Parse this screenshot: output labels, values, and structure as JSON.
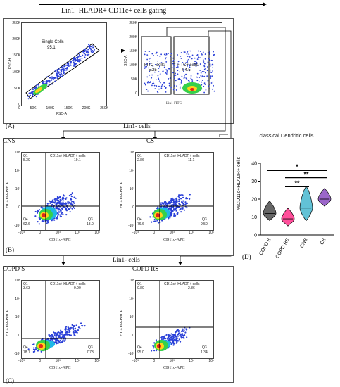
{
  "title": "Lin1- HLADR+ CD11c+ cells gating",
  "panel_a": {
    "label": "(A)",
    "plot1": {
      "gate_name": "Single Cells",
      "gate_value": "95.1",
      "x_label": "FSC-A",
      "y_label": "FSC-H",
      "x_ticks": [
        "0",
        "50K",
        "100K",
        "150K",
        "200K",
        "250K"
      ],
      "y_ticks": [
        "0",
        "50K",
        "100K",
        "150K",
        "200K",
        "250K"
      ]
    },
    "plot2": {
      "gate_neg_name": "FITC- cells",
      "gate_neg_value": "5.25",
      "gate_pos_name": "FITC+ cells",
      "gate_pos_value": "94.5",
      "x_label": "Lin1-FITC",
      "y_label": "SSC-A",
      "y_ticks": [
        "0",
        "50K",
        "100K",
        "150K",
        "200K",
        "250K"
      ]
    }
  },
  "section_lin1_top": "Lin1- cells",
  "section_lin1_bottom": "Lin1- cells",
  "panel_b": {
    "label": "(B)",
    "plots": [
      {
        "name": "CNS",
        "q1": "5.39",
        "q2": "19.1",
        "q3": "13.0",
        "q4": "62.6"
      },
      {
        "name": "CS",
        "q1": "2.86",
        "q2": "11.1",
        "q3": "9.50",
        "q4": "76.6"
      }
    ]
  },
  "panel_c": {
    "label": "(C)",
    "plots": [
      {
        "name": "COPD S",
        "q1": "3.63",
        "q2": "9.90",
        "q3": "7.73",
        "q4": "78.7"
      },
      {
        "name": "COPD RS",
        "q1": "0.80",
        "q2": "2.86",
        "q3": "1.34",
        "q4": "95.0"
      }
    ]
  },
  "quadrant_labels": {
    "q1": "Q1",
    "q2": "CD11c+ HLADR+ cells",
    "q3": "Q3",
    "q4": "Q4"
  },
  "flow_axes": {
    "x_label": "CD11c-APC",
    "y_label": "HLADR-PerCP",
    "y_ticks": [
      "10⁵",
      "10⁴",
      "10³",
      "0",
      "-10³"
    ],
    "x_ticks": [
      "-10³",
      "0",
      "10³",
      "10⁴",
      "10⁵"
    ]
  },
  "panel_d": {
    "label": "(D)",
    "chart_data": {
      "type": "violin",
      "title": "classical Dendritic cells",
      "ylabel": "%CD11c+HLADR+ cells",
      "ylim": [
        0,
        40
      ],
      "yticks": [
        "0",
        "10",
        "20",
        "30",
        "40"
      ],
      "categories": [
        "COPD S",
        "COPD RS",
        "CNS",
        "CS"
      ],
      "colors": [
        "#666666",
        "#ff4f9a",
        "#62c2d6",
        "#9b66c9"
      ],
      "series": [
        {
          "median": 12,
          "min": 8,
          "max": 19
        },
        {
          "median": 9,
          "min": 5,
          "max": 15
        },
        {
          "median": 15,
          "min": 8,
          "max": 27
        },
        {
          "median": 20,
          "min": 16,
          "max": 26
        }
      ],
      "significance": [
        {
          "from": "COPD S",
          "to": "CS",
          "label": "*"
        },
        {
          "from": "COPD RS",
          "to": "CS",
          "label": "**"
        },
        {
          "from": "COPD RS",
          "to": "CNS",
          "label": "**"
        }
      ]
    }
  }
}
